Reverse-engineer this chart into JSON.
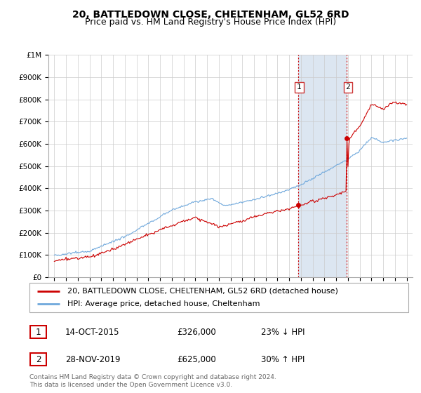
{
  "title": "20, BATTLEDOWN CLOSE, CHELTENHAM, GL52 6RD",
  "subtitle": "Price paid vs. HM Land Registry's House Price Index (HPI)",
  "footer": "Contains HM Land Registry data © Crown copyright and database right 2024.\nThis data is licensed under the Open Government Licence v3.0.",
  "legend_label_red": "20, BATTLEDOWN CLOSE, CHELTENHAM, GL52 6RD (detached house)",
  "legend_label_blue": "HPI: Average price, detached house, Cheltenham",
  "hpi_color": "#6fa8dc",
  "price_color": "#cc0000",
  "highlight_color": "#dce6f1",
  "grid_color": "#cccccc",
  "background_color": "#ffffff",
  "transaction1_year": 2015.75,
  "transaction2_year": 2019.9,
  "marker1_price": 326000,
  "marker2_price": 625000,
  "ylim_max": 1000000,
  "title_fontsize": 10,
  "subtitle_fontsize": 9,
  "tick_fontsize": 7.5,
  "legend_fontsize": 8
}
